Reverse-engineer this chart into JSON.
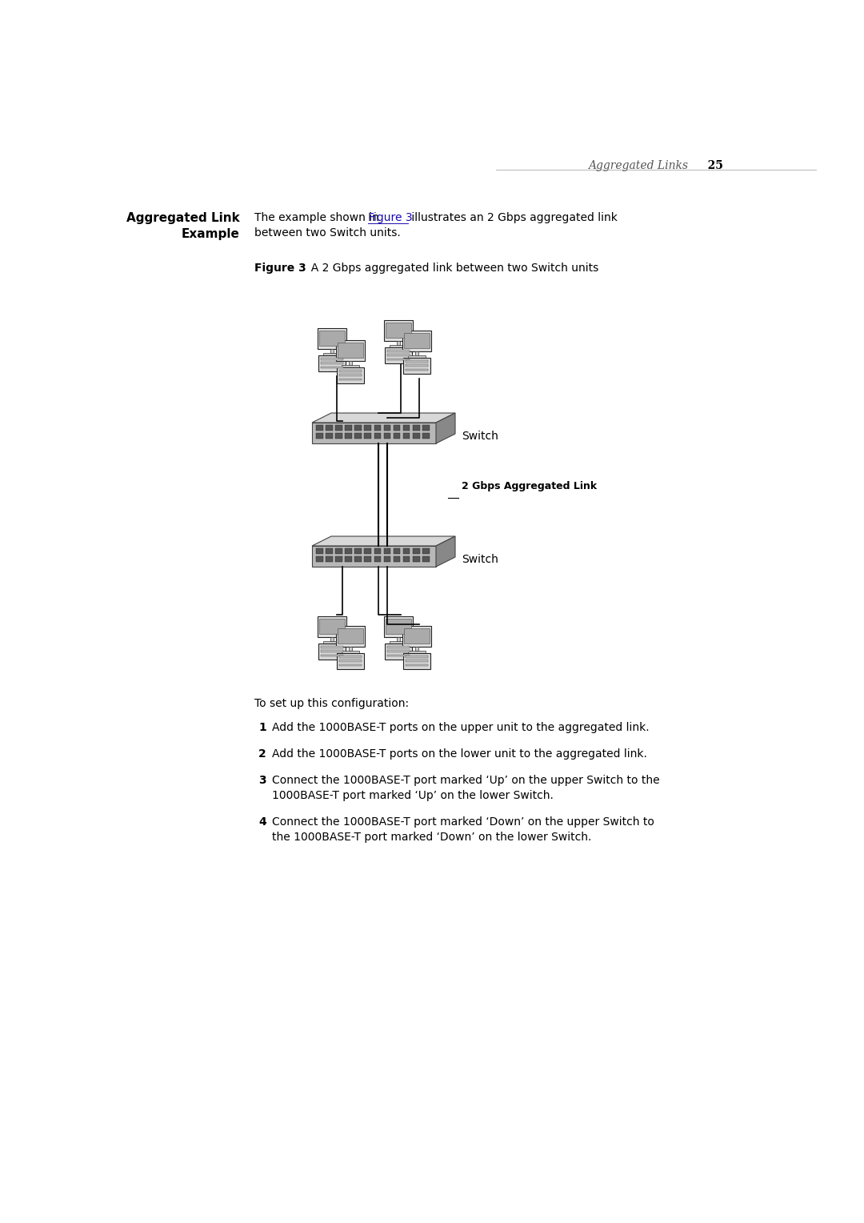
{
  "page_title_italic": "Aggregated Links",
  "page_number": "25",
  "label_aggregated_link": "2 Gbps Aggregated Link",
  "label_switch_upper": "Switch",
  "label_switch_lower": "Switch",
  "config_intro": "To set up this configuration:",
  "steps": [
    "Add the 1000BASE-T ports on the upper unit to the aggregated link.",
    "Add the 1000BASE-T ports on the lower unit to the aggregated link.",
    "Connect the 1000BASE-T port marked ‘Up’ on the upper Switch to the\n1000BASE-T port marked ‘Up’ on the lower Switch.",
    "Connect the 1000BASE-T port marked ‘Down’ on the upper Switch to\nthe 1000BASE-T port marked ‘Down’ on the lower Switch."
  ],
  "bg_color": "#ffffff",
  "text_color": "#000000",
  "link_color": "#1a0dab",
  "fig_width": 10.8,
  "fig_height": 15.28
}
